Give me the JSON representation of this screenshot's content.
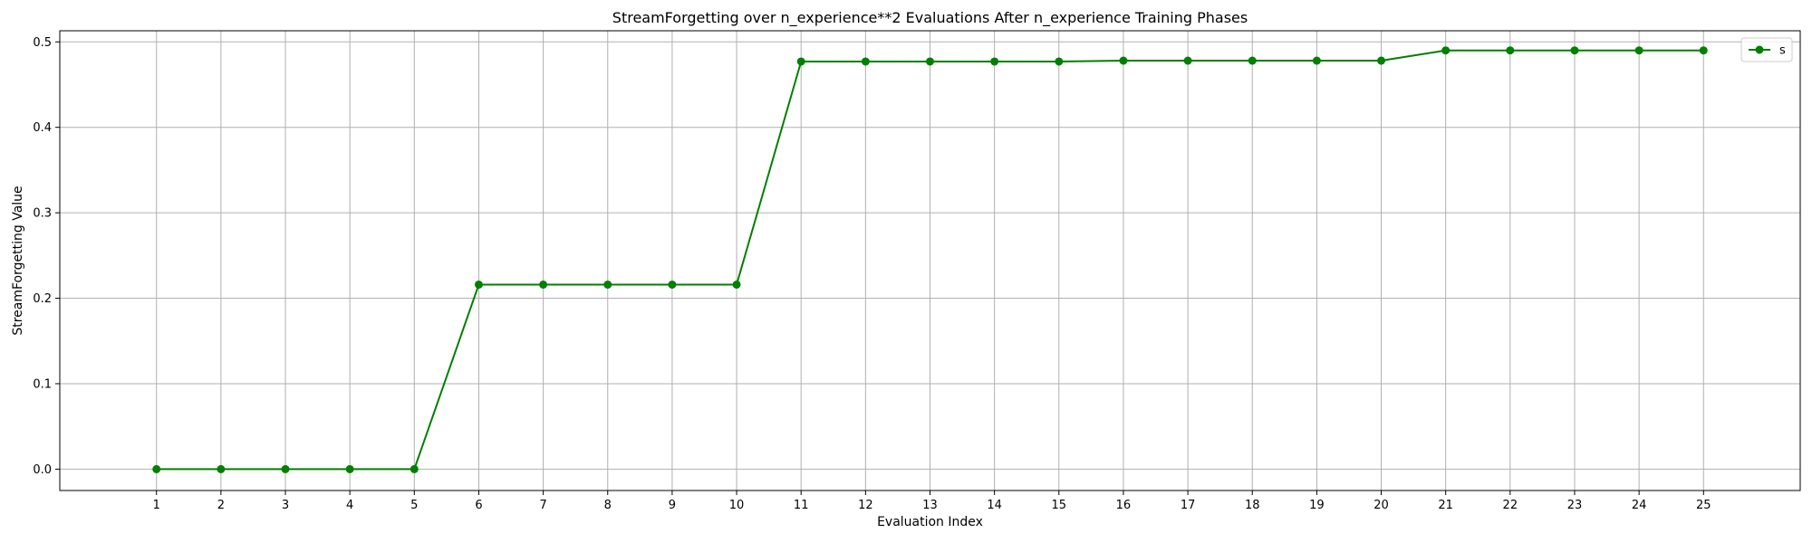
{
  "chart_data": {
    "type": "line",
    "title": "StreamForgetting over n_experience**2 Evaluations After n_experience Training Phases",
    "xlabel": "Evaluation Index",
    "ylabel": "StreamForgetting Value",
    "x": [
      1,
      2,
      3,
      4,
      5,
      6,
      7,
      8,
      9,
      10,
      11,
      12,
      13,
      14,
      15,
      16,
      17,
      18,
      19,
      20,
      21,
      22,
      23,
      24,
      25
    ],
    "series": [
      {
        "name": "s",
        "color": "#008000",
        "marker": "circle",
        "values": [
          0.0,
          0.0,
          0.0,
          0.0,
          0.0,
          0.216,
          0.216,
          0.216,
          0.216,
          0.216,
          0.477,
          0.477,
          0.477,
          0.477,
          0.477,
          0.478,
          0.478,
          0.478,
          0.478,
          0.478,
          0.49,
          0.49,
          0.49,
          0.49,
          0.49
        ]
      }
    ],
    "xlim": [
      -0.5,
      26.5
    ],
    "ylim": [
      -0.025,
      0.513
    ],
    "yticks": [
      0.0,
      0.1,
      0.2,
      0.3,
      0.4,
      0.5
    ],
    "ytick_labels": [
      "0.0",
      "0.1",
      "0.2",
      "0.3",
      "0.4",
      "0.5"
    ],
    "xtick_labels": [
      "1",
      "2",
      "3",
      "4",
      "5",
      "6",
      "7",
      "8",
      "9",
      "10",
      "11",
      "12",
      "13",
      "14",
      "15",
      "16",
      "17",
      "18",
      "19",
      "20",
      "21",
      "22",
      "23",
      "24",
      "25"
    ],
    "grid": true,
    "legend_position": "top-right",
    "colors": {
      "grid": "#b0b0b0",
      "axis": "#000000",
      "legend_border": "#cccccc"
    }
  }
}
